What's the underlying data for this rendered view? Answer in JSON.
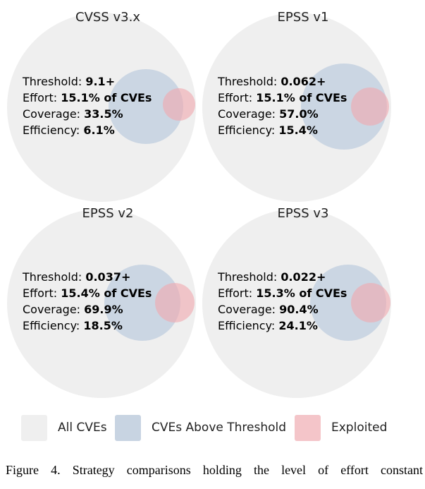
{
  "panels": [
    {
      "title": "CVSS v3.x",
      "threshold_label": "Threshold:",
      "threshold": "9.1+",
      "effort_label": "Effort:",
      "effort": "15.1% of CVEs",
      "coverage_label": "Coverage:",
      "coverage": "33.5%",
      "efficiency_label": "Efficiency:",
      "efficiency": "6.1%"
    },
    {
      "title": "EPSS v1",
      "threshold_label": "Threshold:",
      "threshold": "0.062+",
      "effort_label": "Effort:",
      "effort": "15.1% of CVEs",
      "coverage_label": "Coverage:",
      "coverage": "57.0%",
      "efficiency_label": "Efficiency:",
      "efficiency": "15.4%"
    },
    {
      "title": "EPSS v2",
      "threshold_label": "Threshold:",
      "threshold": "0.037+",
      "effort_label": "Effort:",
      "effort": "15.4% of CVEs",
      "coverage_label": "Coverage:",
      "coverage": "69.9%",
      "efficiency_label": "Efficiency:",
      "efficiency": "18.5%"
    },
    {
      "title": "EPSS v3",
      "threshold_label": "Threshold:",
      "threshold": "0.022+",
      "effort_label": "Effort:",
      "effort": "15.3% of CVEs",
      "coverage_label": "Coverage:",
      "coverage": "90.4%",
      "efficiency_label": "Efficiency:",
      "efficiency": "24.1%"
    }
  ],
  "legend": [
    {
      "label": "All CVEs",
      "color": "#efefef"
    },
    {
      "label": "CVEs Above Threshold",
      "color": "#c8d4e2"
    },
    {
      "label": "Exploited",
      "color": "#f4c5c9"
    }
  ],
  "caption": "Figure 4. Strategy comparisons holding the level of effort constant"
}
